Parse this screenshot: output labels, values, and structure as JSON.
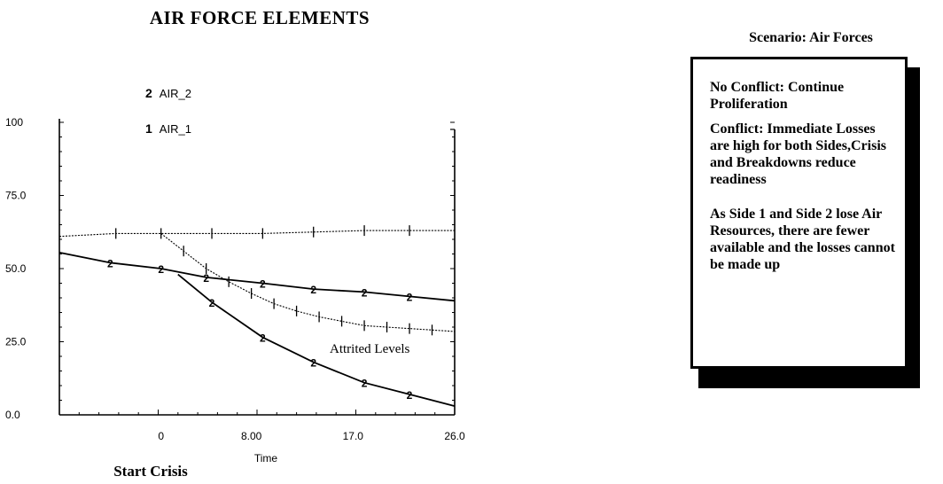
{
  "chart_data": {
    "type": "line",
    "title": "AIR FORCE ELEMENTS",
    "xlabel": "Time",
    "ylabel": "",
    "x_tick_labels": [
      "0",
      "8.00",
      "17.0",
      "26.0"
    ],
    "y_tick_labels": [
      "0.0",
      "25.0",
      "50.0",
      "75.0",
      "100"
    ],
    "ylim": [
      0,
      100
    ],
    "xlim": [
      -9,
      26
    ],
    "legend": [
      {
        "number": "2",
        "label": "AIR_2"
      },
      {
        "number": "1",
        "label": "AIR_1"
      }
    ],
    "series": [
      {
        "name": "AIR_1",
        "marker": "1",
        "shown_as": "tick marks",
        "color": "#000000",
        "x": [
          -9,
          -4,
          0,
          4.5,
          9,
          13.5,
          18,
          22,
          26
        ],
        "y": [
          61,
          62,
          62,
          62,
          62,
          62.5,
          63,
          63,
          63
        ]
      },
      {
        "name": "AIR_1",
        "marker": "1",
        "shown_as": "tick marks",
        "color": "#000000",
        "x": [
          0,
          2,
          4,
          6,
          8,
          10,
          12,
          14,
          16,
          18,
          20,
          22,
          24,
          26
        ],
        "y": [
          62,
          56,
          50,
          45.5,
          41.5,
          38,
          35.5,
          33.5,
          32,
          30.5,
          30,
          29.5,
          29,
          28.5
        ]
      },
      {
        "name": "AIR_2",
        "marker": "2",
        "color": "#000000",
        "x": [
          -9,
          -4.5,
          0,
          4,
          9,
          13.5,
          18,
          22,
          26
        ],
        "y": [
          55.5,
          52,
          50,
          47,
          45,
          43,
          42,
          40.5,
          39
        ]
      },
      {
        "name": "AIR_2",
        "marker": "2",
        "color": "#000000",
        "x": [
          1.5,
          4.5,
          9,
          13.5,
          18,
          22,
          26
        ],
        "y": [
          48,
          38.5,
          26.5,
          18,
          11,
          7,
          3
        ]
      }
    ],
    "annotations": [
      "Attrited Levels",
      "Start Crisis"
    ],
    "grid": false,
    "legend_position": "top-left"
  },
  "annotation_text": "Attrited Levels",
  "start_crisis_label": "Start Crisis",
  "scenario_box": {
    "title": "Scenario: Air Forces",
    "paragraphs": [
      "No Conflict: Continue Proliferation",
      "Conflict:  Immediate Losses are high for both Sides,Crisis and Breakdowns reduce readiness",
      "As Side 1 and Side 2 lose Air Resources, there are fewer available and the losses cannot be made up"
    ]
  }
}
